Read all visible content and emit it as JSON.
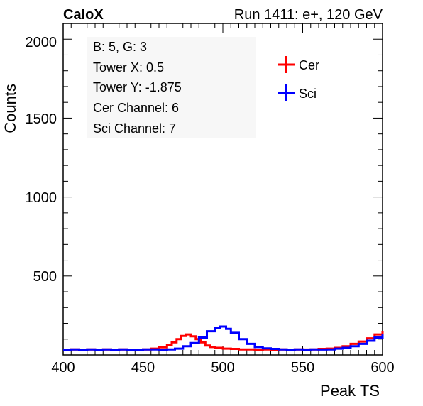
{
  "header": {
    "left_label": "CaloX",
    "right_label": "Run 1411: e+, 120 GeV"
  },
  "info_box": {
    "lines": [
      "B: 5, G: 3",
      "Tower X: 0.5",
      "Tower Y: -1.875",
      "Cer Channel: 6",
      "Sci Channel: 7"
    ]
  },
  "colors": {
    "cer": "#ff0000",
    "sci": "#0000ff",
    "info_bg": "#f7f7f7"
  },
  "chart_data": {
    "type": "line",
    "xlabel": "Peak TS",
    "ylabel": "Counts",
    "xlim": [
      400,
      600
    ],
    "ylim": [
      0,
      2100
    ],
    "x_ticks": [
      400,
      450,
      500,
      550,
      600
    ],
    "y_ticks": [
      500,
      1000,
      1500,
      2000
    ],
    "legend": {
      "placement": "top-right",
      "entries": [
        "Cer",
        "Sci"
      ]
    },
    "grid": false,
    "series": [
      {
        "name": "Cer",
        "color": "#ff0000",
        "x": [
          400,
          405,
          410,
          415,
          420,
          425,
          430,
          435,
          440,
          445,
          450,
          455,
          460,
          465,
          468,
          471,
          474,
          477,
          480,
          483,
          486,
          489,
          492,
          495,
          500,
          505,
          510,
          515,
          520,
          525,
          530,
          535,
          540,
          545,
          550,
          555,
          560,
          565,
          570,
          575,
          580,
          585,
          590,
          595,
          600
        ],
        "values": [
          30,
          35,
          30,
          35,
          32,
          35,
          33,
          35,
          30,
          32,
          35,
          40,
          48,
          65,
          80,
          100,
          120,
          130,
          118,
          100,
          80,
          60,
          50,
          45,
          40,
          38,
          35,
          35,
          33,
          35,
          32,
          35,
          33,
          35,
          34,
          35,
          38,
          40,
          45,
          55,
          70,
          85,
          105,
          130,
          150
        ]
      },
      {
        "name": "Sci",
        "color": "#0000ff",
        "x": [
          400,
          405,
          410,
          415,
          420,
          425,
          430,
          435,
          440,
          445,
          450,
          455,
          460,
          465,
          470,
          475,
          480,
          485,
          490,
          495,
          498,
          502,
          505,
          510,
          515,
          520,
          525,
          530,
          535,
          540,
          545,
          550,
          555,
          560,
          565,
          570,
          575,
          580,
          585,
          590,
          595,
          600
        ],
        "values": [
          30,
          35,
          33,
          35,
          32,
          35,
          33,
          35,
          30,
          32,
          35,
          35,
          33,
          35,
          40,
          55,
          75,
          110,
          150,
          170,
          180,
          165,
          140,
          100,
          70,
          50,
          42,
          38,
          35,
          33,
          35,
          32,
          35,
          34,
          35,
          40,
          45,
          55,
          70,
          90,
          110,
          130
        ]
      }
    ]
  }
}
